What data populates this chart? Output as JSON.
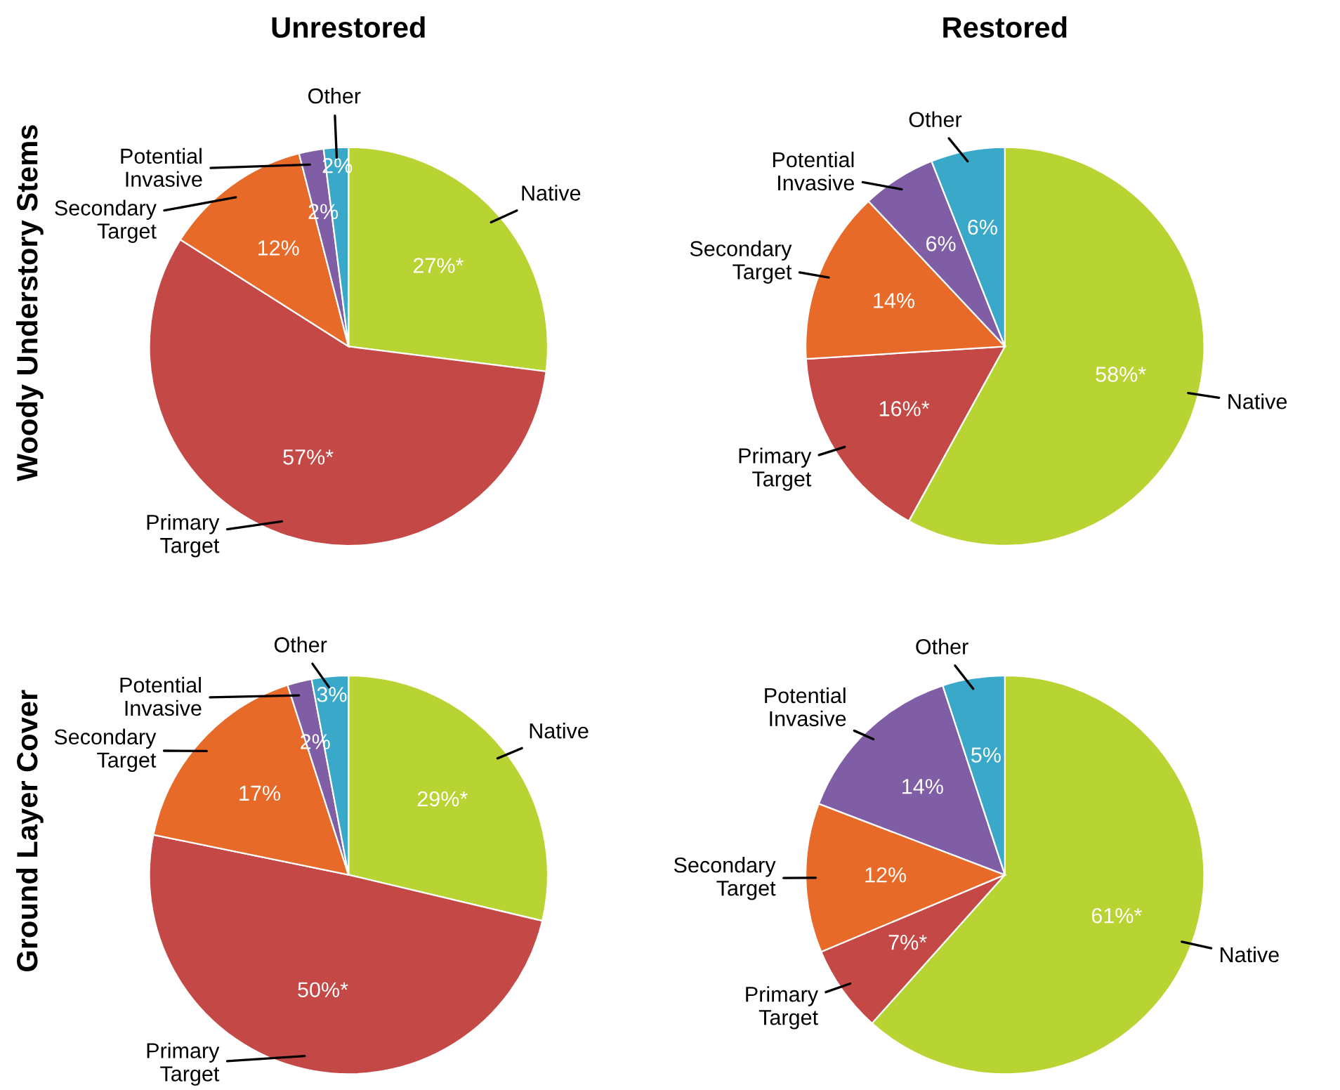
{
  "chart_data": [
    {
      "type": "pie",
      "title": "Unrestored",
      "ylabel": "Woody Understory Stems",
      "categories": [
        "Native",
        "Primary Target",
        "Secondary Target",
        "Potential Invasive",
        "Other"
      ],
      "values": [
        27,
        57,
        12,
        2,
        2
      ],
      "value_labels": [
        "27%*",
        "57%*",
        "12%",
        "2%",
        "2%"
      ],
      "colors": [
        "#b8d432",
        "#c44845",
        "#e86a28",
        "#7f5ea6",
        "#3aa8c8"
      ]
    },
    {
      "type": "pie",
      "title": "Restored",
      "categories": [
        "Native",
        "Primary Target",
        "Secondary Target",
        "Potential Invasive",
        "Other"
      ],
      "values": [
        58,
        16,
        14,
        6,
        6
      ],
      "value_labels": [
        "58%*",
        "16%*",
        "14%",
        "6%",
        "6%"
      ],
      "colors": [
        "#b8d432",
        "#c44845",
        "#e86a28",
        "#7f5ea6",
        "#3aa8c8"
      ]
    },
    {
      "type": "pie",
      "ylabel": "Ground Layer Cover",
      "categories": [
        "Native",
        "Primary Target",
        "Secondary Target",
        "Potential Invasive",
        "Other"
      ],
      "values": [
        29,
        50,
        17,
        2,
        3
      ],
      "value_labels": [
        "29%*",
        "50%*",
        "17%",
        "2%",
        "3%"
      ],
      "colors": [
        "#b8d432",
        "#c44845",
        "#e86a28",
        "#7f5ea6",
        "#3aa8c8"
      ]
    },
    {
      "type": "pie",
      "categories": [
        "Native",
        "Primary Target",
        "Secondary Target",
        "Potential Invasive",
        "Other"
      ],
      "values": [
        61,
        7,
        12,
        14,
        5
      ],
      "value_labels": [
        "61%*",
        "7%*",
        "12%",
        "14%",
        "5%"
      ],
      "colors": [
        "#b8d432",
        "#c44845",
        "#e86a28",
        "#7f5ea6",
        "#3aa8c8"
      ]
    }
  ]
}
